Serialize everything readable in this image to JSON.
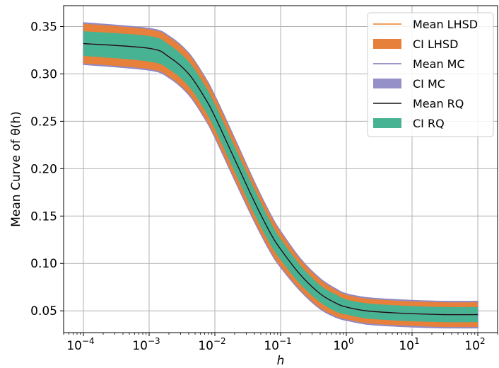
{
  "chart_data": {
    "type": "area",
    "title": "",
    "xlabel": "h",
    "ylabel": "Mean Curve of θ(h)",
    "x_scale": "log",
    "xlim": [
      5e-05,
      0.0002
    ],
    "ylim": [
      0.027,
      0.372
    ],
    "x_ticks": [
      {
        "value": 0.0001,
        "base": "10",
        "exp": "−4"
      },
      {
        "value": 0.001,
        "base": "10",
        "exp": "−3"
      },
      {
        "value": 0.01,
        "base": "10",
        "exp": "−2"
      },
      {
        "value": 0.1,
        "base": "10",
        "exp": "−1"
      },
      {
        "value": 1,
        "base": "10",
        "exp": "0"
      },
      {
        "value": 10,
        "base": "10",
        "exp": "1"
      },
      {
        "value": 100,
        "base": "10",
        "exp": "2"
      }
    ],
    "y_ticks": [
      {
        "value": 0.05,
        "label": "0.05"
      },
      {
        "value": 0.1,
        "label": "0.10"
      },
      {
        "value": 0.15,
        "label": "0.15"
      },
      {
        "value": 0.2,
        "label": "0.20"
      },
      {
        "value": 0.25,
        "label": "0.25"
      },
      {
        "value": 0.3,
        "label": "0.30"
      },
      {
        "value": 0.35,
        "label": "0.35"
      }
    ],
    "grid": true,
    "legend_position": "top-right",
    "x": [
      0.0001,
      0.001,
      0.002,
      0.004,
      0.007,
      0.01,
      0.02,
      0.04,
      0.07,
      0.1,
      0.2,
      0.4,
      0.7,
      1,
      2,
      5,
      10,
      30,
      100
    ],
    "series": [
      {
        "name": "Mean LHSD",
        "kind": "line",
        "color": "#e87d2a",
        "values": [
          0.332,
          0.327,
          0.318,
          0.3,
          0.275,
          0.255,
          0.21,
          0.165,
          0.132,
          0.115,
          0.088,
          0.068,
          0.058,
          0.054,
          0.05,
          0.048,
          0.047,
          0.046,
          0.046
        ]
      },
      {
        "name": "CI LHSD",
        "kind": "band",
        "color": "#e6803a",
        "lower": [
          0.311,
          0.305,
          0.297,
          0.279,
          0.254,
          0.234,
          0.189,
          0.145,
          0.113,
          0.097,
          0.072,
          0.053,
          0.044,
          0.041,
          0.037,
          0.035,
          0.034,
          0.033,
          0.033
        ],
        "upper": [
          0.353,
          0.347,
          0.339,
          0.321,
          0.296,
          0.276,
          0.231,
          0.185,
          0.151,
          0.133,
          0.104,
          0.083,
          0.072,
          0.067,
          0.063,
          0.061,
          0.06,
          0.059,
          0.059
        ]
      },
      {
        "name": "Mean MC",
        "kind": "line",
        "color": "#7f72b8",
        "values": [
          0.332,
          0.327,
          0.318,
          0.3,
          0.275,
          0.255,
          0.21,
          0.165,
          0.132,
          0.115,
          0.088,
          0.068,
          0.058,
          0.054,
          0.05,
          0.048,
          0.047,
          0.046,
          0.046
        ]
      },
      {
        "name": "CI MC",
        "kind": "band",
        "color": "#9590c8",
        "lower": [
          0.31,
          0.304,
          0.296,
          0.278,
          0.253,
          0.233,
          0.188,
          0.144,
          0.112,
          0.096,
          0.071,
          0.052,
          0.043,
          0.04,
          0.036,
          0.034,
          0.033,
          0.032,
          0.032
        ],
        "upper": [
          0.354,
          0.348,
          0.34,
          0.322,
          0.297,
          0.277,
          0.232,
          0.186,
          0.152,
          0.134,
          0.105,
          0.084,
          0.073,
          0.068,
          0.064,
          0.062,
          0.061,
          0.06,
          0.06
        ]
      },
      {
        "name": "Mean RQ",
        "kind": "line",
        "color": "#111111",
        "values": [
          0.332,
          0.327,
          0.318,
          0.3,
          0.275,
          0.255,
          0.21,
          0.165,
          0.132,
          0.115,
          0.088,
          0.068,
          0.058,
          0.054,
          0.05,
          0.048,
          0.047,
          0.046,
          0.046
        ]
      },
      {
        "name": "CI RQ",
        "kind": "band",
        "color": "#48b392",
        "lower": [
          0.319,
          0.313,
          0.305,
          0.287,
          0.262,
          0.242,
          0.197,
          0.152,
          0.12,
          0.104,
          0.078,
          0.059,
          0.049,
          0.046,
          0.042,
          0.04,
          0.039,
          0.038,
          0.038
        ],
        "upper": [
          0.345,
          0.34,
          0.331,
          0.313,
          0.288,
          0.268,
          0.223,
          0.178,
          0.144,
          0.126,
          0.098,
          0.077,
          0.067,
          0.062,
          0.058,
          0.056,
          0.055,
          0.054,
          0.054
        ]
      }
    ]
  }
}
